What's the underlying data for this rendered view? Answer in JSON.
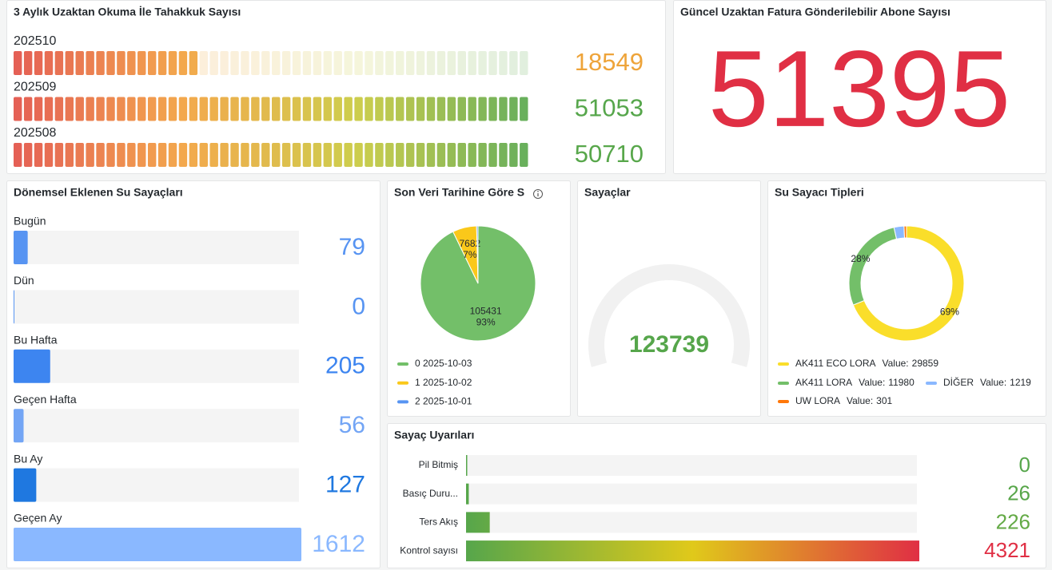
{
  "chart_data": [
    {
      "type": "led-gauge",
      "title": "3 Aylık Uzaktan Okuma İle Tahakkuk Sayısı",
      "categories": [
        "202510",
        "202509",
        "202508"
      ],
      "values": [
        18549,
        51053,
        50710
      ],
      "xlim": [
        0,
        51053
      ],
      "colors": [
        "#e24d42",
        "#f2a03a",
        "#c8c83a",
        "#56a64b"
      ]
    },
    {
      "type": "stat",
      "title": "Güncel Uzaktan Fatura Gönderilebilir Abone Sayısı",
      "value": 51395,
      "color": "#e02f44"
    },
    {
      "type": "bar-gauge",
      "title": "Dönemsel Eklenen Su Sayaçları",
      "categories": [
        "Bugün",
        "Dün",
        "Bu Hafta",
        "Geçen Hafta",
        "Bu Ay",
        "Geçen Ay"
      ],
      "values": [
        79,
        0,
        205,
        56,
        127,
        1612
      ],
      "xlim": [
        0,
        1612
      ],
      "colors": [
        "#5794f2",
        "#5794f2",
        "#3d85f0",
        "#73a5f5",
        "#1f78e0",
        "#8ab8ff"
      ]
    },
    {
      "type": "pie",
      "title": "Son Veri Tarihine Göre S",
      "categories": [
        "0 2025-10-03",
        "1 2025-10-02",
        "2 2025-10-01"
      ],
      "values": [
        105431,
        7682,
        450
      ],
      "percent_labels": [
        "93%",
        "7%",
        null
      ],
      "colors": [
        "#73bf69",
        "#fac81a",
        "#5794f2"
      ]
    },
    {
      "type": "gauge",
      "title": "Sayaçlar",
      "value": 123739,
      "color": "#56a64b"
    },
    {
      "type": "donut",
      "title": "Su Sayacı Tipleri",
      "categories": [
        "AK411 ECO LORA",
        "AK411 LORA",
        "DİĞER",
        "UW LORA"
      ],
      "values": [
        29859,
        11980,
        1219,
        301
      ],
      "percent_labels": [
        "69%",
        "28%",
        null,
        null
      ],
      "legend_value_label": "Value:",
      "colors": [
        "#fade2a",
        "#73bf69",
        "#8ab8ff",
        "#ff780a"
      ]
    },
    {
      "type": "bar-gauge-h",
      "title": "Sayaç Uyarıları",
      "categories": [
        "Pil Bitmiş",
        "Basıç Duru...",
        "Ters Akış",
        "Kontrol sayısı"
      ],
      "values": [
        0,
        26,
        226,
        4321
      ],
      "xlim": [
        0,
        4321
      ],
      "colors": [
        "#56a64b",
        "#e0c91a",
        "#e02f44"
      ]
    }
  ]
}
